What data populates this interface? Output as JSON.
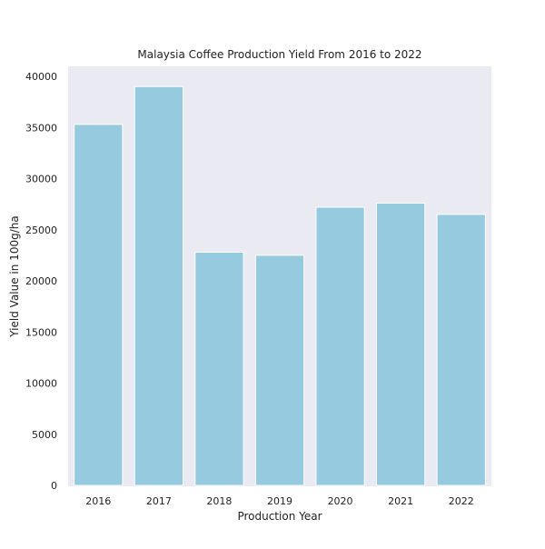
{
  "chart_data": {
    "type": "bar",
    "title": "Malaysia Coffee Production Yield From 2016 to 2022",
    "xlabel": "Production Year",
    "ylabel": "Yield Value in 100g/ha",
    "categories": [
      "2016",
      "2017",
      "2018",
      "2019",
      "2020",
      "2021",
      "2022"
    ],
    "values": [
      35300,
      39000,
      22800,
      22500,
      27200,
      27600,
      26500
    ],
    "ylim": [
      0,
      40000
    ],
    "yticks": [
      0,
      5000,
      10000,
      15000,
      20000,
      25000,
      30000,
      35000,
      40000
    ],
    "grid": false,
    "colors": {
      "bar": "#95cadf",
      "bar_edge": "#ffffff",
      "plot_background": "#eaeaf2",
      "text": "#222222"
    }
  }
}
